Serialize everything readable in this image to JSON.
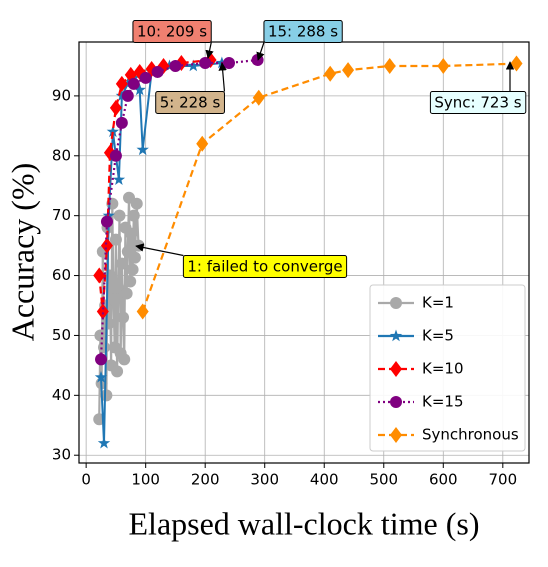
{
  "chart_data": {
    "type": "line",
    "xlabel": "Elapsed wall-clock time (s)",
    "ylabel": "Accuracy (%)",
    "xlim": [
      -12,
      744
    ],
    "xticks": [
      0,
      100,
      200,
      300,
      400,
      500,
      600,
      700
    ],
    "ylim": [
      28.7,
      99
    ],
    "yticks": [
      30,
      40,
      50,
      60,
      70,
      80,
      90
    ],
    "grid": true,
    "legend": "lower right",
    "series": [
      {
        "name": "K=1",
        "color": "#a9a9a9",
        "marker": "circle",
        "dash": "solid",
        "x": [
          22,
          24,
          26,
          28,
          30,
          32,
          34,
          36,
          38,
          40,
          42,
          44,
          46,
          48,
          50,
          52,
          54,
          56,
          58,
          60,
          62,
          64,
          66,
          68,
          70,
          72,
          74,
          76,
          78,
          80,
          82,
          85,
          88
        ],
        "values": [
          36,
          50,
          42,
          64,
          48,
          55,
          40,
          68,
          52,
          60,
          45,
          72,
          56,
          48,
          66,
          44,
          58,
          70,
          47,
          62,
          53,
          46,
          68,
          57,
          64,
          73,
          59,
          67,
          61,
          70,
          63,
          72,
          65
        ]
      },
      {
        "name": "K=5",
        "color": "#1f77b4",
        "marker": "star",
        "dash": "solid",
        "x": [
          25,
          30,
          38,
          45,
          55,
          60,
          70,
          80,
          90,
          95,
          110,
          140,
          180,
          228
        ],
        "values": [
          43,
          32,
          70,
          84,
          76,
          90,
          92,
          93,
          91,
          81,
          94,
          95,
          95,
          95.5
        ]
      },
      {
        "name": "K=10",
        "color": "#ff0000",
        "marker": "diamond",
        "dash": "dashed",
        "x": [
          22,
          28,
          35,
          40,
          50,
          60,
          75,
          90,
          110,
          130,
          160,
          209
        ],
        "values": [
          60,
          54,
          65,
          80.5,
          88,
          92,
          93.5,
          94,
          94.5,
          95,
          95.5,
          96
        ]
      },
      {
        "name": "K=15",
        "color": "#800080",
        "marker": "circle",
        "dash": "dotted",
        "x": [
          25,
          35,
          50,
          60,
          70,
          80,
          100,
          120,
          150,
          200,
          240,
          288
        ],
        "values": [
          46,
          69,
          80,
          85.5,
          90,
          92,
          93,
          94,
          95,
          95.5,
          95.5,
          96
        ]
      },
      {
        "name": "Synchronous",
        "color": "#ff8c00",
        "marker": "diamond",
        "dash": "dashed",
        "x": [
          95,
          195,
          290,
          410,
          440,
          510,
          600,
          723
        ],
        "values": [
          54,
          82,
          89.7,
          93.7,
          94.3,
          95,
          95,
          95.4
        ]
      }
    ],
    "annotations": [
      {
        "text": "10: 209 s",
        "color": "#f08070"
      },
      {
        "text": "15: 288 s",
        "color": "#87cee6"
      },
      {
        "text": "5: 228 s",
        "color": "#d2b48c"
      },
      {
        "text": "Sync: 723 s",
        "color": "#e6ffff"
      },
      {
        "text": "1: failed to converge",
        "color": "#ffff00"
      }
    ]
  }
}
